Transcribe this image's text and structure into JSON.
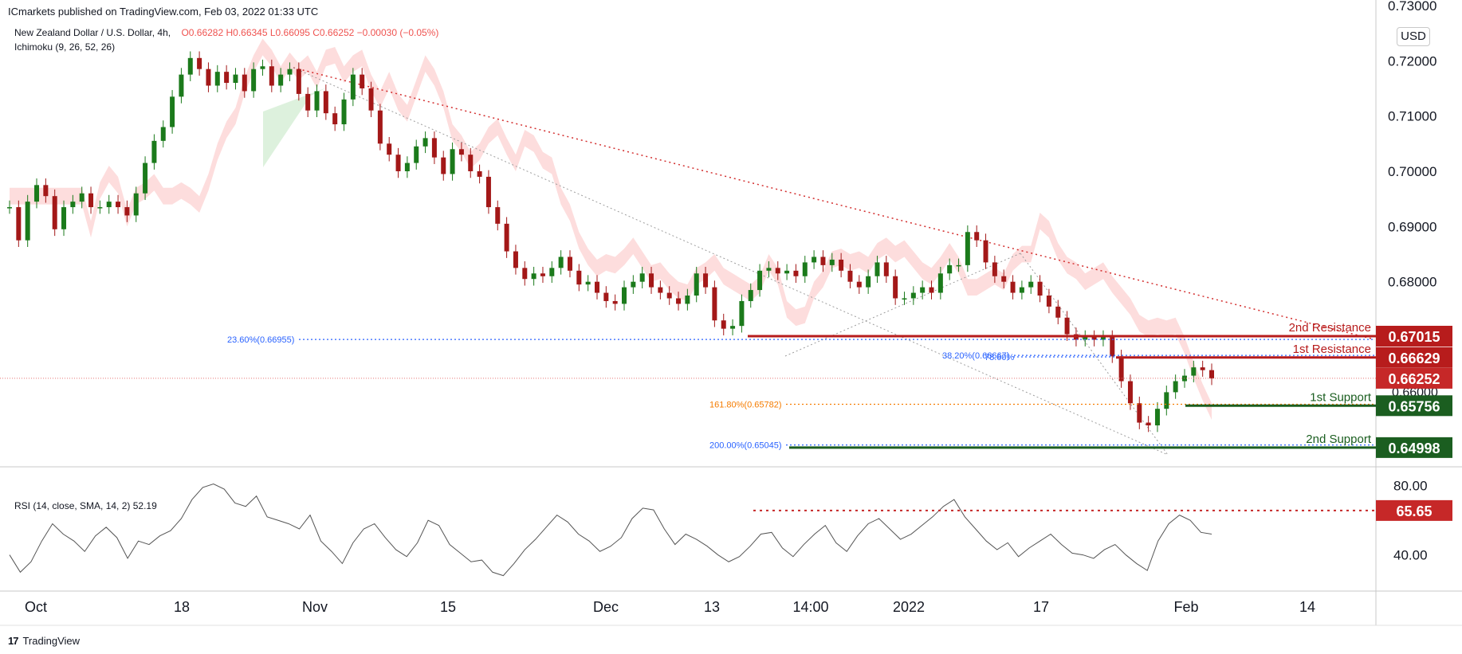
{
  "publisher": "ICmarkets published on TradingView.com, Feb 03, 2022 01:33 UTC",
  "footer_brand": "TradingView",
  "footer_logo": "17",
  "legend": {
    "symbol": "New Zealand Dollar / U.S. Dollar, 4h,",
    "ohlc": "O0.66282 H0.66345 L0.66095 C0.66252 −0.00030 (−0.05%)",
    "indicator": "Ichimoku (9, 26, 52, 26)",
    "rsi": "RSI (14, close, SMA, 14, 2)  52.19"
  },
  "currency": "USD",
  "colors": {
    "up": "#26a69a",
    "down": "#ef5350",
    "candle_up": "#1b7a1b",
    "candle_down": "#a31818",
    "resistance": "#b71c1c",
    "support": "#1b5e20",
    "fib_blue": "#2962ff",
    "fib_orange": "#f57c00",
    "cloud_red": "#fcd4d4",
    "cloud_green": "#d9efd9",
    "rsi_line": "#555555"
  },
  "chart_data": {
    "type": "candlestick",
    "symbol": "NZDUSD",
    "timeframe": "4h",
    "x_ticks": [
      "Oct",
      "18",
      "Nov",
      "15",
      "Dec",
      "13",
      "14:00",
      "2022",
      "17",
      "Feb",
      "14"
    ],
    "y_ticks": [
      "0.72000",
      "0.71000",
      "0.70000",
      "0.69000",
      "0.68000"
    ],
    "ylim": [
      0.6465,
      0.731
    ],
    "price_path": [
      0.6935,
      0.6875,
      0.6945,
      0.6975,
      0.6955,
      0.6895,
      0.6935,
      0.6945,
      0.696,
      0.6935,
      0.6935,
      0.6945,
      0.6935,
      0.692,
      0.696,
      0.7015,
      0.7055,
      0.708,
      0.7135,
      0.7175,
      0.7205,
      0.7185,
      0.7155,
      0.718,
      0.716,
      0.7175,
      0.7145,
      0.7185,
      0.719,
      0.7155,
      0.7175,
      0.7185,
      0.714,
      0.711,
      0.7145,
      0.7105,
      0.7085,
      0.713,
      0.7175,
      0.715,
      0.711,
      0.705,
      0.703,
      0.7,
      0.7015,
      0.7045,
      0.706,
      0.7025,
      0.6995,
      0.704,
      0.703,
      0.7,
      0.699,
      0.6935,
      0.6905,
      0.6855,
      0.6825,
      0.6805,
      0.6815,
      0.681,
      0.6825,
      0.6845,
      0.682,
      0.6795,
      0.68,
      0.678,
      0.6765,
      0.676,
      0.679,
      0.68,
      0.6815,
      0.679,
      0.678,
      0.677,
      0.676,
      0.6775,
      0.6815,
      0.679,
      0.673,
      0.6715,
      0.672,
      0.6765,
      0.6785,
      0.682,
      0.6825,
      0.6815,
      0.682,
      0.681,
      0.6835,
      0.6845,
      0.683,
      0.684,
      0.682,
      0.68,
      0.679,
      0.681,
      0.6835,
      0.681,
      0.677,
      0.677,
      0.678,
      0.679,
      0.678,
      0.6815,
      0.683,
      0.683,
      0.689,
      0.6875,
      0.6835,
      0.681,
      0.68,
      0.678,
      0.679,
      0.68,
      0.6775,
      0.6755,
      0.6735,
      0.6705,
      0.6695,
      0.67,
      0.6695,
      0.67,
      0.6665,
      0.662,
      0.658,
      0.6545,
      0.654,
      0.657,
      0.66,
      0.662,
      0.663,
      0.6645,
      0.664,
      0.6625
    ],
    "rsi": {
      "ylim": [
        20,
        90
      ],
      "y_ticks": [
        "80.00",
        "40.00"
      ],
      "last": 52.19,
      "marked_level": "65.65",
      "values": [
        40,
        30,
        36,
        48,
        58,
        52,
        48,
        42,
        51,
        56,
        50,
        38,
        48,
        46,
        51,
        54,
        61,
        72,
        79,
        81,
        78,
        70,
        68,
        74,
        62,
        60,
        58,
        55,
        63,
        48,
        42,
        35,
        47,
        55,
        58,
        50,
        43,
        39,
        47,
        60,
        57,
        46,
        41,
        36,
        37,
        30,
        28,
        35,
        43,
        49,
        56,
        63,
        59,
        52,
        48,
        42,
        45,
        50,
        61,
        67,
        66,
        55,
        46,
        52,
        49,
        45,
        40,
        36,
        39,
        45,
        52,
        53,
        44,
        39,
        46,
        52,
        57,
        47,
        42,
        51,
        58,
        61,
        55,
        49,
        52,
        57,
        62,
        68,
        72,
        62,
        55,
        48,
        43,
        47,
        39,
        44,
        48,
        52,
        46,
        41,
        40,
        38,
        43,
        46,
        40,
        35,
        31,
        48,
        58,
        63,
        60,
        53,
        52
      ]
    },
    "levels": [
      {
        "label": "2nd Resistance",
        "value": "0.67015",
        "price": 0.67015,
        "kind": "resistance"
      },
      {
        "label": "1st Resistance",
        "value": "0.66629",
        "price": 0.66629,
        "kind": "resistance"
      },
      {
        "label": "",
        "value": "0.66252",
        "price": 0.66252,
        "kind": "current"
      },
      {
        "label": "1st Support",
        "value": "0.65756",
        "price": 0.65756,
        "kind": "support"
      },
      {
        "label": "2nd Support",
        "value": "0.64998",
        "price": 0.64998,
        "kind": "support"
      }
    ],
    "fib_labels": [
      {
        "text": "23.60%(0.66955)",
        "price": 0.66955,
        "color": "blue"
      },
      {
        "text": "38.20%(0.66667)",
        "price": 0.66667,
        "color": "blue"
      },
      {
        "text": "78.60%",
        "price": 0.6664,
        "color": "blue"
      },
      {
        "text": "161.80%(0.65782)",
        "price": 0.65782,
        "color": "orange"
      },
      {
        "text": "200.00%(0.65045)",
        "price": 0.65045,
        "color": "blue"
      }
    ],
    "partial_tick": "0.73000",
    "hidden_tick": "0.66000"
  }
}
